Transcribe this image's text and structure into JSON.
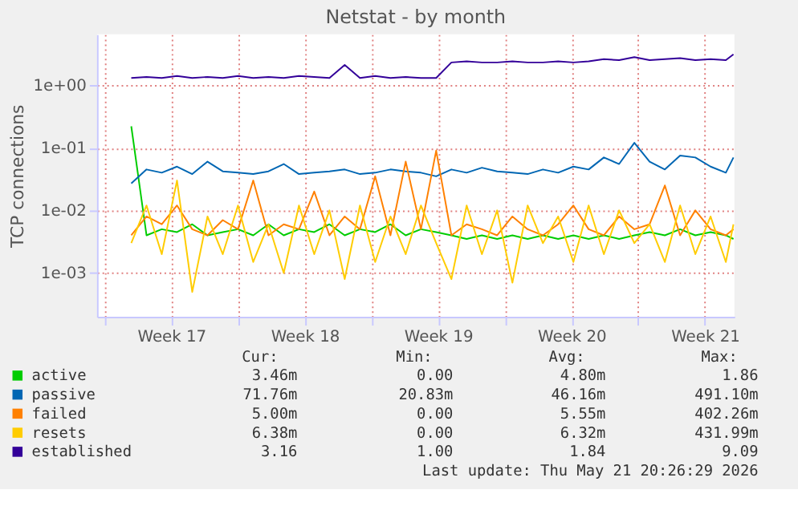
{
  "chart_data": {
    "type": "line",
    "title": "Netstat - by month",
    "ylabel": "TCP connections",
    "log": "y",
    "grid": true,
    "legend": "bottom",
    "ylim": [
      0.0002,
      6.5
    ],
    "yticks": [
      {
        "value": 0.001,
        "label": "1e-03"
      },
      {
        "value": 0.01,
        "label": "1e-02"
      },
      {
        "value": 0.1,
        "label": "1e-01"
      },
      {
        "value": 1,
        "label": "1e+00"
      }
    ],
    "xlim": [
      "2026-04-18T10:24",
      "2026-05-21T21:12"
    ],
    "xticks": [
      {
        "value": "2026-04-18T20:00",
        "label": null
      },
      {
        "value": "2026-04-22T08:00",
        "label": "Week 17"
      },
      {
        "value": "2026-04-25T20:00",
        "label": null
      },
      {
        "value": "2026-04-29T08:00",
        "label": "Week 18"
      },
      {
        "value": "2026-05-02T20:00",
        "label": null
      },
      {
        "value": "2026-05-06T08:00",
        "label": "Week 19"
      },
      {
        "value": "2026-05-09T20:00",
        "label": null
      },
      {
        "value": "2026-05-13T08:00",
        "label": "Week 20"
      },
      {
        "value": "2026-05-16T20:00",
        "label": null
      },
      {
        "value": "2026-05-20T08:00",
        "label": "Week 21"
      }
    ],
    "x": [
      "2026-04-20T05:36",
      "2026-04-21T00:48",
      "2026-04-21T20:00",
      "2026-04-22T15:12",
      "2026-04-23T10:24",
      "2026-04-24T05:36",
      "2026-04-25T00:48",
      "2026-04-25T20:00",
      "2026-04-26T15:12",
      "2026-04-27T10:24",
      "2026-04-28T05:36",
      "2026-04-29T00:48",
      "2026-04-29T20:00",
      "2026-04-30T15:12",
      "2026-05-01T10:24",
      "2026-05-02T05:36",
      "2026-05-03T00:48",
      "2026-05-03T20:00",
      "2026-05-04T15:12",
      "2026-05-05T10:24",
      "2026-05-06T05:36",
      "2026-05-07T00:48",
      "2026-05-07T20:00",
      "2026-05-08T15:12",
      "2026-05-09T10:24",
      "2026-05-10T05:36",
      "2026-05-11T00:48",
      "2026-05-11T20:00",
      "2026-05-12T15:12",
      "2026-05-13T10:24",
      "2026-05-14T05:36",
      "2026-05-15T00:48",
      "2026-05-15T20:00",
      "2026-05-16T15:12",
      "2026-05-17T10:24",
      "2026-05-18T05:36",
      "2026-05-19T00:48",
      "2026-05-19T20:00",
      "2026-05-20T15:12",
      "2026-05-21T10:24",
      "2026-05-21T20:00"
    ],
    "series": [
      {
        "name": "active",
        "color": "#00cc00",
        "values": [
          0.22,
          0.004,
          0.005,
          0.0045,
          0.006,
          0.004,
          0.0045,
          0.005,
          0.004,
          0.006,
          0.004,
          0.005,
          0.0045,
          0.006,
          0.004,
          0.005,
          0.0045,
          0.006,
          0.004,
          0.005,
          0.0045,
          0.004,
          0.0035,
          0.004,
          0.0035,
          0.004,
          0.0035,
          0.004,
          0.0035,
          0.004,
          0.0035,
          0.004,
          0.0035,
          0.004,
          0.0045,
          0.004,
          0.005,
          0.004,
          0.0045,
          0.004,
          0.0035
        ]
      },
      {
        "name": "passive",
        "color": "#0066b3",
        "values": [
          0.027,
          0.045,
          0.04,
          0.05,
          0.038,
          0.06,
          0.042,
          0.04,
          0.038,
          0.042,
          0.055,
          0.038,
          0.04,
          0.042,
          0.045,
          0.038,
          0.04,
          0.045,
          0.042,
          0.04,
          0.035,
          0.045,
          0.04,
          0.048,
          0.042,
          0.04,
          0.038,
          0.045,
          0.04,
          0.05,
          0.045,
          0.07,
          0.055,
          0.12,
          0.06,
          0.045,
          0.075,
          0.07,
          0.05,
          0.04,
          0.07
        ]
      },
      {
        "name": "failed",
        "color": "#ff8000",
        "values": [
          0.004,
          0.008,
          0.006,
          0.012,
          0.005,
          0.004,
          0.007,
          0.005,
          0.03,
          0.004,
          0.006,
          0.005,
          0.02,
          0.004,
          0.008,
          0.005,
          0.035,
          0.004,
          0.06,
          0.005,
          0.09,
          0.004,
          0.006,
          0.005,
          0.004,
          0.008,
          0.005,
          0.004,
          0.006,
          0.012,
          0.005,
          0.004,
          0.008,
          0.005,
          0.006,
          0.025,
          0.004,
          0.01,
          0.005,
          0.004,
          0.005
        ]
      },
      {
        "name": "resets",
        "color": "#ffcc00",
        "values": [
          0.003,
          0.012,
          0.002,
          0.03,
          0.0005,
          0.008,
          0.002,
          0.012,
          0.0015,
          0.006,
          0.001,
          0.012,
          0.002,
          0.01,
          0.0008,
          0.012,
          0.0015,
          0.008,
          0.002,
          0.012,
          0.003,
          0.0008,
          0.012,
          0.002,
          0.01,
          0.0007,
          0.012,
          0.003,
          0.008,
          0.0015,
          0.012,
          0.002,
          0.01,
          0.003,
          0.006,
          0.0015,
          0.012,
          0.002,
          0.008,
          0.0015,
          0.006
        ]
      },
      {
        "name": "established",
        "color": "#330099",
        "values": [
          1.3,
          1.35,
          1.3,
          1.4,
          1.3,
          1.35,
          1.3,
          1.4,
          1.3,
          1.35,
          1.3,
          1.4,
          1.35,
          1.3,
          2.1,
          1.3,
          1.4,
          1.3,
          1.35,
          1.3,
          1.3,
          2.3,
          2.4,
          2.3,
          2.3,
          2.4,
          2.3,
          2.3,
          2.4,
          2.3,
          2.4,
          2.6,
          2.5,
          2.8,
          2.5,
          2.6,
          2.7,
          2.5,
          2.6,
          2.5,
          3.1
        ]
      }
    ],
    "annotations": [
      "Cur:",
      "Min:",
      "Avg:",
      "Max:",
      "3.46m",
      "0.00",
      "4.80m",
      "1.86",
      "71.76m",
      "20.83m",
      "46.16m",
      "491.10m",
      "5.00m",
      "0.00",
      "5.55m",
      "402.26m",
      "6.38m",
      "0.00",
      "6.32m",
      "431.99m",
      "3.16",
      "1.00",
      "1.84",
      "9.09",
      "Last update: Thu May 21 20:26:29 2026"
    ]
  }
}
